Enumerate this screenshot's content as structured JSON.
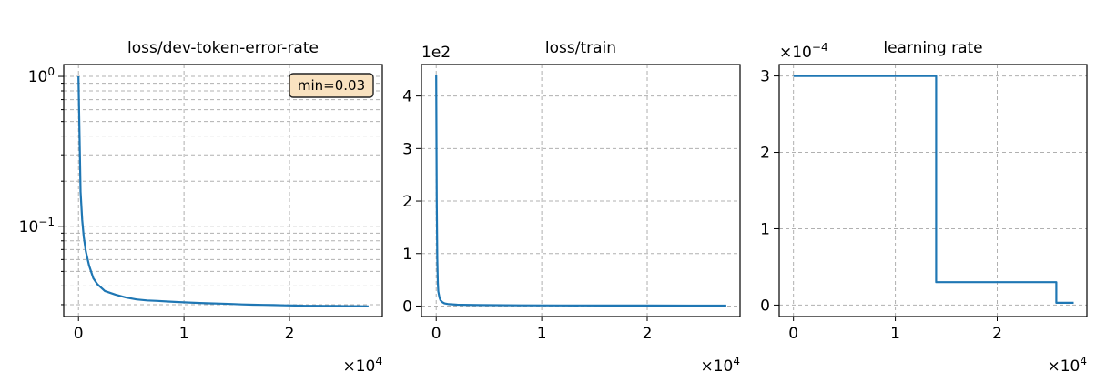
{
  "colors": {
    "series": "#1f77b4",
    "grid": "#b0b0b0",
    "annotation_fill": "#f9e2c0"
  },
  "chart_data": [
    {
      "type": "line",
      "title": "loss/dev-token-error-rate",
      "yscale": "log",
      "ylim": [
        0.025,
        1.2
      ],
      "xlim": [
        -1400,
        28800
      ],
      "grid": true,
      "xticks": [
        0,
        10000,
        20000
      ],
      "xtick_labels": [
        "0",
        "1",
        "2"
      ],
      "x_offset_text": "×10",
      "x_offset_exp": "4",
      "y_major_ticks": [
        {
          "value": 0.1,
          "base": "10",
          "exp": "−1"
        },
        {
          "value": 1,
          "base": "10",
          "exp": "0"
        }
      ],
      "annotation": {
        "text": "min=0.03",
        "position": "top-right"
      },
      "series": [
        {
          "x": [
            0,
            100,
            200,
            350,
            500,
            700,
            1000,
            1400,
            1800,
            2500,
            3500,
            4500,
            5500,
            6500,
            7500,
            8500,
            9500,
            10500,
            11500,
            12500,
            13500,
            14500,
            15500,
            16500,
            17500,
            18500,
            19500,
            20500,
            21500,
            22500,
            23500,
            24500,
            25500,
            26500,
            27500
          ],
          "y": [
            1.0,
            0.4,
            0.17,
            0.11,
            0.085,
            0.068,
            0.055,
            0.045,
            0.041,
            0.037,
            0.035,
            0.0335,
            0.0325,
            0.032,
            0.0318,
            0.0315,
            0.0312,
            0.031,
            0.0308,
            0.0306,
            0.0305,
            0.0303,
            0.0301,
            0.03,
            0.0299,
            0.0298,
            0.0297,
            0.0296,
            0.0295,
            0.0295,
            0.0294,
            0.0294,
            0.0293,
            0.0293,
            0.0292
          ]
        }
      ]
    },
    {
      "type": "line",
      "title": "loss/train",
      "yscale": "linear",
      "ylim": [
        -20,
        460
      ],
      "xlim": [
        -1400,
        28800
      ],
      "grid": true,
      "xticks": [
        0,
        10000,
        20000
      ],
      "xtick_labels": [
        "0",
        "1",
        "2"
      ],
      "x_offset_text": "×10",
      "x_offset_exp": "4",
      "yticks": [
        0,
        100,
        200,
        300,
        400
      ],
      "ytick_labels": [
        "0",
        "1",
        "2",
        "3",
        "4"
      ],
      "y_offset_text": "1e2",
      "series": [
        {
          "x": [
            0,
            50,
            100,
            150,
            200,
            300,
            400,
            600,
            800,
            1200,
            2000,
            4000,
            8000,
            12000,
            16000,
            20000,
            24000,
            27500
          ],
          "y": [
            440,
            200,
            90,
            45,
            28,
            17,
            11,
            7,
            5,
            3.5,
            2.5,
            1.8,
            1.3,
            1.1,
            1.0,
            0.9,
            0.85,
            0.8
          ]
        }
      ]
    },
    {
      "type": "line",
      "title": "learning rate",
      "yscale": "linear",
      "ylim": [
        -1.5e-05,
        0.000315
      ],
      "xlim": [
        -1400,
        28800
      ],
      "grid": true,
      "xticks": [
        0,
        10000,
        20000
      ],
      "xtick_labels": [
        "0",
        "1",
        "2"
      ],
      "x_offset_text": "×10",
      "x_offset_exp": "4",
      "yticks": [
        0,
        0.0001,
        0.0002,
        0.0003
      ],
      "ytick_labels": [
        "0",
        "1",
        "2",
        "3"
      ],
      "y_offset_text": "×10",
      "y_offset_exp": "−4",
      "series": [
        {
          "x": [
            0,
            14000,
            14000,
            25800,
            25800,
            27500
          ],
          "y": [
            0.0003,
            0.0003,
            3e-05,
            3e-05,
            3e-06,
            3e-06
          ]
        }
      ]
    }
  ]
}
